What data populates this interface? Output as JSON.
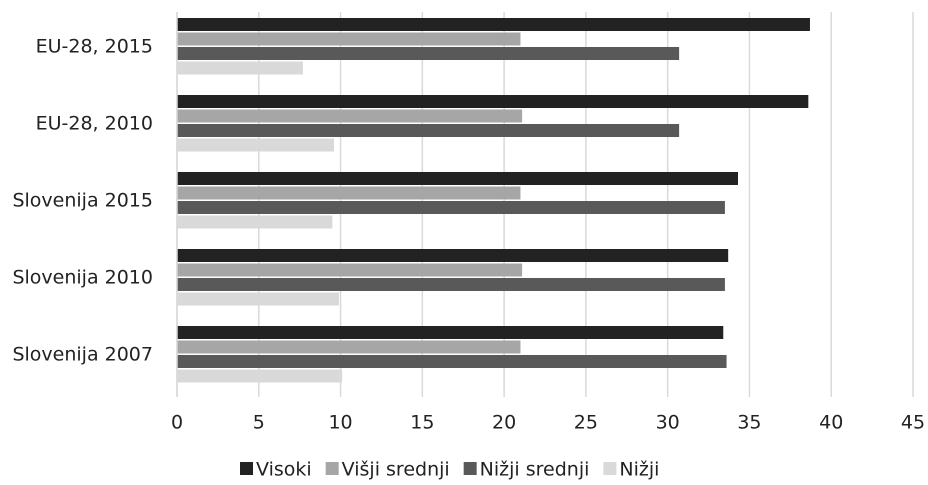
{
  "chart_data": {
    "type": "barh",
    "categories": [
      "EU-28, 2015",
      "EU-28, 2010",
      "Slovenija 2015",
      "Slovenija 2010",
      "Slovenija 2007"
    ],
    "series": [
      {
        "name": "Visoki",
        "color": "#222222",
        "values": [
          38.7,
          38.6,
          34.3,
          33.7,
          33.4
        ]
      },
      {
        "name": "Višji srednji",
        "color": "#a6a6a6",
        "values": [
          21.0,
          21.1,
          21.0,
          21.1,
          21.0
        ]
      },
      {
        "name": "Nižji srednji",
        "color": "#595959",
        "values": [
          30.7,
          30.7,
          33.5,
          33.5,
          33.6
        ]
      },
      {
        "name": "Nižji",
        "color": "#d9d9d9",
        "values": [
          7.7,
          9.6,
          9.5,
          9.9,
          10.1
        ]
      }
    ],
    "xlim": [
      0,
      45
    ],
    "xticks": [
      0,
      5,
      10,
      15,
      20,
      25,
      30,
      35,
      40,
      45
    ],
    "grid": true,
    "legend": "bottom"
  }
}
